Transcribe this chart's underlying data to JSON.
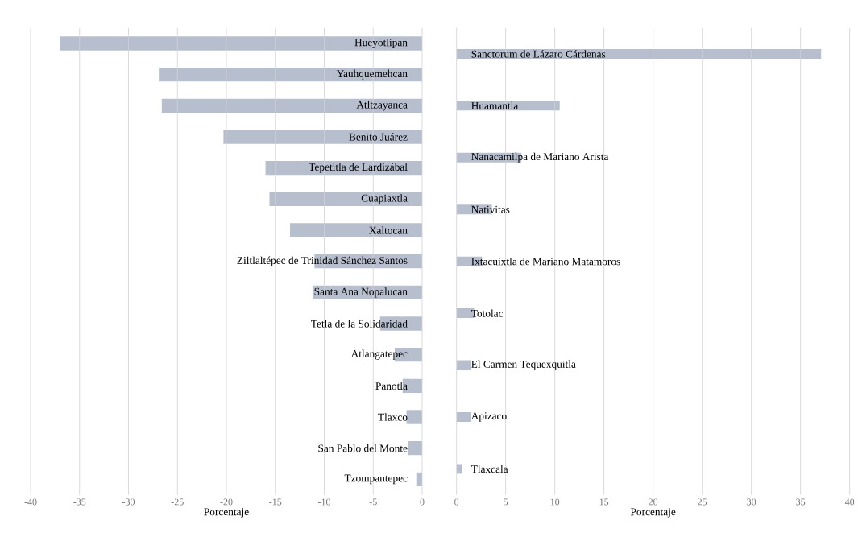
{
  "chart_data": [
    {
      "type": "bar",
      "orientation": "horizontal",
      "xlabel": "Porcentaje",
      "grid": "x",
      "color": "#b7bfcf",
      "categories": [
        "Hueyotlipan",
        "Yauhquemehcan",
        "Atltzayanca",
        "Benito Juárez",
        "Tepetitla de Lardizábal",
        "Cuapiaxtla",
        "Xaltocan",
        "Ziltlaltépec de Trinidad Sánchez Santos",
        "Santa Ana Nopalucan",
        "Tetla de la Solidaridad",
        "Atlangatepec",
        "Panotla",
        "Tlaxco",
        "San Pablo del Monte",
        "Tzompantepec"
      ],
      "values": [
        -37.0,
        -26.9,
        -26.6,
        -20.3,
        -16.0,
        -15.6,
        -13.5,
        -11.0,
        -11.2,
        -4.3,
        -2.8,
        -2.0,
        -1.6,
        -1.4,
        -0.6
      ],
      "xlim": [
        -40,
        0
      ],
      "xticks": [
        -40,
        -35,
        -30,
        -25,
        -20,
        -15,
        -10,
        -5,
        0
      ]
    },
    {
      "type": "bar",
      "orientation": "horizontal",
      "xlabel": "Porcentaje",
      "grid": "x",
      "color": "#b7bfcf",
      "categories": [
        "Sanctorum de Lázaro Cárdenas",
        "Huamantla",
        "Nanacamilpa de Mariano Arista",
        "Nativitas",
        "Ixtacuixtla de Mariano Matamoros",
        "Totolac",
        "El Carmen Tequexquitla",
        "Apizaco",
        "Tlaxcala"
      ],
      "values": [
        37.1,
        10.5,
        6.6,
        3.6,
        2.6,
        1.8,
        1.5,
        1.5,
        0.6
      ],
      "xlim": [
        0,
        40
      ],
      "xticks": [
        0,
        5,
        10,
        15,
        20,
        25,
        30,
        35,
        40
      ]
    }
  ]
}
